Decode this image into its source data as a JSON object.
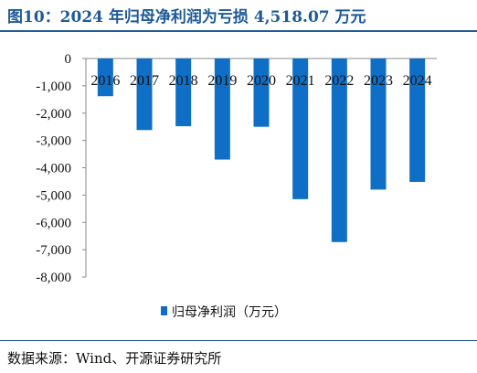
{
  "title": "图10：2024 年归母净利润为亏损 4,518.07 万元",
  "source": "数据来源：Wind、开源证券研究所",
  "chart_data": {
    "type": "bar",
    "categories": [
      "2016",
      "2017",
      "2018",
      "2019",
      "2020",
      "2021",
      "2022",
      "2023",
      "2024"
    ],
    "series": [
      {
        "name": "归母净利润（万元）",
        "values": [
          -1380,
          -2620,
          -2480,
          -3700,
          -2500,
          -5150,
          -6720,
          -4800,
          -4518.07
        ],
        "color": "#0f6fc6"
      }
    ],
    "ylim": [
      -8000,
      0
    ],
    "yticks": [
      0,
      -1000,
      -2000,
      -3000,
      -4000,
      -5000,
      -6000,
      -7000,
      -8000
    ],
    "ytick_labels": [
      "0",
      "-1,000",
      "-2,000",
      "-3,000",
      "-4,000",
      "-5,000",
      "-6,000",
      "-7,000",
      "-8,000"
    ],
    "grid": false,
    "legend": "bottom-center"
  }
}
